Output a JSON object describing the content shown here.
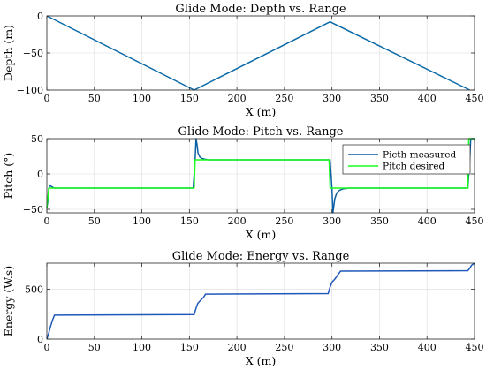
{
  "chart_data": [
    {
      "type": "line",
      "title": "Glide Mode: Depth vs. Range",
      "xlabel": "X (m)",
      "ylabel": "Depth (m)",
      "xlim": [
        0,
        450
      ],
      "ylim": [
        -100,
        0
      ],
      "xticks": [
        0,
        50,
        100,
        150,
        200,
        250,
        300,
        350,
        400,
        450
      ],
      "yticks": [
        -100,
        -50,
        0
      ],
      "yticklabels": [
        "−100",
        "−50",
        "0"
      ],
      "grid": true,
      "legend": "none",
      "series": [
        {
          "color": "#0b6aa8",
          "x": [
            0,
            155,
            298,
            445
          ],
          "y": [
            0,
            -100,
            -8,
            -100
          ]
        }
      ]
    },
    {
      "type": "line",
      "title": "Glide Mode: Pitch vs. Range",
      "xlabel": "X (m)",
      "ylabel": "Pitch (°)",
      "xlim": [
        0,
        450
      ],
      "ylim": [
        -55,
        50
      ],
      "xticks": [
        0,
        50,
        100,
        150,
        200,
        250,
        300,
        350,
        400,
        450
      ],
      "yticks": [
        -50,
        0,
        50
      ],
      "yticklabels": [
        "−50",
        "0",
        "50"
      ],
      "grid": true,
      "legend": "top-right",
      "series": [
        {
          "name": "Picth measured",
          "color": "#0b5fa5",
          "x": [
            0,
            1,
            2,
            3,
            5,
            8,
            15,
            150,
            154,
            156,
            157,
            158,
            159,
            161,
            163,
            166,
            170,
            175,
            180,
            296,
            298,
            300,
            301,
            302,
            303,
            305,
            308,
            312,
            318,
            440,
            443,
            445,
            446,
            450
          ],
          "y": [
            -48,
            -40,
            -22,
            -16,
            -18,
            -20,
            -20,
            -20,
            -20,
            20,
            50,
            42,
            30,
            24,
            22,
            21,
            20,
            20,
            20,
            20,
            20,
            -20,
            -55,
            -45,
            -35,
            -27,
            -23,
            -21,
            -20,
            -20,
            -20,
            20,
            50,
            50
          ]
        },
        {
          "name": "Pitch desired",
          "color": "#1aff1a",
          "x": [
            0,
            1,
            2,
            5,
            155,
            156,
            297,
            298,
            443,
            444,
            450
          ],
          "y": [
            -48,
            -35,
            -20,
            -20,
            -20,
            20,
            20,
            -20,
            -20,
            50,
            50
          ]
        }
      ]
    },
    {
      "type": "line",
      "title": "Glide Mode: Energy vs. Range",
      "xlabel": "X (m)",
      "ylabel": "Energy (W.s)",
      "xlim": [
        0,
        450
      ],
      "ylim": [
        0,
        760
      ],
      "xticks": [
        0,
        50,
        100,
        150,
        200,
        250,
        300,
        350,
        400,
        450
      ],
      "yticks": [
        0,
        500
      ],
      "yticklabels": [
        "0",
        "500"
      ],
      "grid": true,
      "legend": "none",
      "series": [
        {
          "color": "#1f58b8",
          "x": [
            0,
            2,
            4,
            6,
            8,
            155,
            157,
            159,
            162,
            165,
            167,
            296,
            298,
            300,
            303,
            306,
            309,
            443,
            445,
            447,
            450
          ],
          "y": [
            0,
            60,
            130,
            190,
            240,
            245,
            310,
            360,
            390,
            420,
            450,
            455,
            520,
            570,
            600,
            640,
            680,
            685,
            710,
            740,
            760
          ]
        }
      ]
    }
  ]
}
